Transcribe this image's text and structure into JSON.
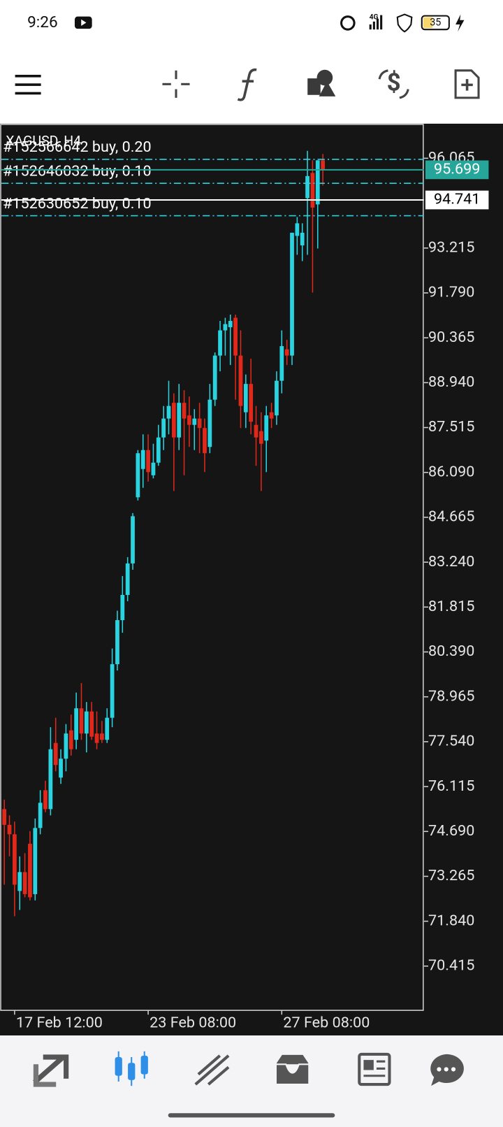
{
  "status_bar": {
    "time": "9:26",
    "network": "4G",
    "battery": "35"
  },
  "chart_data": {
    "type": "candlestick",
    "title": "XAGUSD, H4",
    "categories": [
      null,
      null,
      "17 Feb 12:00",
      null,
      null,
      null,
      null,
      null,
      null,
      null,
      null,
      null,
      null,
      null,
      null,
      null,
      null,
      null,
      null,
      null,
      null,
      null,
      null,
      null,
      null,
      null,
      null,
      null,
      "23 Feb 08:00",
      null,
      null,
      null,
      null,
      null,
      null,
      null,
      null,
      null,
      null,
      null,
      null,
      null,
      null,
      null,
      null,
      null,
      null,
      null,
      null,
      null,
      null,
      null,
      null,
      null,
      "27 Feb 08:00",
      null,
      null,
      null,
      null,
      null,
      null,
      null,
      null
    ],
    "open": [
      75.4,
      74.9,
      74.6,
      72.8,
      73.4,
      74.3,
      72.7,
      74.8,
      76.0,
      75.4,
      77.5,
      76.4,
      77.0,
      77.9,
      77.6,
      78.6,
      77.8,
      78.5,
      77.8,
      77.8,
      77.6,
      78.3,
      80.0,
      81.4,
      82.2,
      83.2,
      85.3,
      86.2,
      86.8,
      86.0,
      86.4,
      87.2,
      87.8,
      88.3,
      87.2,
      88.3,
      87.9,
      87.6,
      87.8,
      87.5,
      86.9,
      88.4,
      89.8,
      90.6,
      90.7,
      91.0,
      89.8,
      88.0,
      88.9,
      87.6,
      87.4,
      87.1,
      88.0,
      87.9,
      89.0,
      90.0,
      89.8,
      93.6,
      93.3,
      94.8,
      95.6,
      94.6,
      96.0
    ],
    "high": [
      75.7,
      75.2,
      75.0,
      73.9,
      74.0,
      74.7,
      75.1,
      76.0,
      76.3,
      78.0,
      78.3,
      77.3,
      78.1,
      78.4,
      79.1,
      79.4,
      78.8,
      78.8,
      78.5,
      78.2,
      78.6,
      80.5,
      81.7,
      82.8,
      83.4,
      84.8,
      86.8,
      87.3,
      87.3,
      87.0,
      87.6,
      88.2,
      89.0,
      88.6,
      88.9,
      88.7,
      88.5,
      88.1,
      88.3,
      87.8,
      88.9,
      89.9,
      90.9,
      91.0,
      91.1,
      91.1,
      90.6,
      89.2,
      89.7,
      88.2,
      88.0,
      88.2,
      88.3,
      89.3,
      90.6,
      90.3,
      93.7,
      94.2,
      94.0,
      96.3,
      96.0,
      96.0,
      96.2
    ],
    "low": [
      73.0,
      73.9,
      72.0,
      72.2,
      72.6,
      72.5,
      72.5,
      74.6,
      75.3,
      75.2,
      76.6,
      76.2,
      76.6,
      77.1,
      77.3,
      77.6,
      77.2,
      77.6,
      77.3,
      77.5,
      77.5,
      78.0,
      79.8,
      81.0,
      82.0,
      83.0,
      85.2,
      85.6,
      85.8,
      85.9,
      86.3,
      86.8,
      87.3,
      85.5,
      86.8,
      86.0,
      86.9,
      86.8,
      86.7,
      86.1,
      86.7,
      88.2,
      89.3,
      89.8,
      89.5,
      88.4,
      87.5,
      87.5,
      87.3,
      86.3,
      85.5,
      86.1,
      87.5,
      87.6,
      88.6,
      89.5,
      89.5,
      93.0,
      92.8,
      93.0,
      91.8,
      93.2,
      95.2
    ],
    "close": [
      74.9,
      74.6,
      73.0,
      73.4,
      72.7,
      72.6,
      74.8,
      75.6,
      75.4,
      77.3,
      76.8,
      77.0,
      77.8,
      77.3,
      78.6,
      77.8,
      78.5,
      77.7,
      77.5,
      77.6,
      78.3,
      80.0,
      81.4,
      82.2,
      83.2,
      84.7,
      86.7,
      86.8,
      86.1,
      86.4,
      87.2,
      87.8,
      88.2,
      87.2,
      88.3,
      87.8,
      87.6,
      87.8,
      87.5,
      86.7,
      88.4,
      89.8,
      90.6,
      90.8,
      90.9,
      89.8,
      88.2,
      88.9,
      87.7,
      87.2,
      87.0,
      87.9,
      87.8,
      89.0,
      90.1,
      89.8,
      93.7,
      94.0,
      93.7,
      95.5,
      94.5,
      96.0,
      95.7
    ],
    "up_color": "#2ad3e0",
    "down_color": "#e0281b",
    "ylim": [
      69.01,
      97.14
    ],
    "yticks": [
      96.065,
      93.215,
      {
        "value": 91.79,
        "label": "91.790"
      },
      90.365,
      {
        "value": 88.94,
        "label": "88.940"
      },
      87.515,
      {
        "value": 86.09,
        "label": "86.090"
      },
      84.665,
      {
        "value": 83.24,
        "label": "83.240"
      },
      81.815,
      {
        "value": 80.39,
        "label": "80.390"
      },
      78.965,
      {
        "value": 77.54,
        "label": "77.540"
      },
      76.115,
      {
        "value": 74.69,
        "label": "74.690"
      },
      73.265,
      {
        "value": 71.84,
        "label": "71.840"
      },
      70.415
    ],
    "price_labels": [
      {
        "value": 95.699,
        "color": "#26a69a",
        "text_color": "#ffffff"
      },
      {
        "value": 94.741,
        "color": "#ffffff",
        "text_color": "#000000"
      }
    ],
    "orders": [
      {
        "label": "#152566642 buy, 0.20",
        "price": 96.03
      },
      {
        "label": "#152646032 buy, 0.10",
        "price": 95.27
      },
      {
        "label": "#152630652 buy, 0.10",
        "price": 94.24
      }
    ]
  }
}
